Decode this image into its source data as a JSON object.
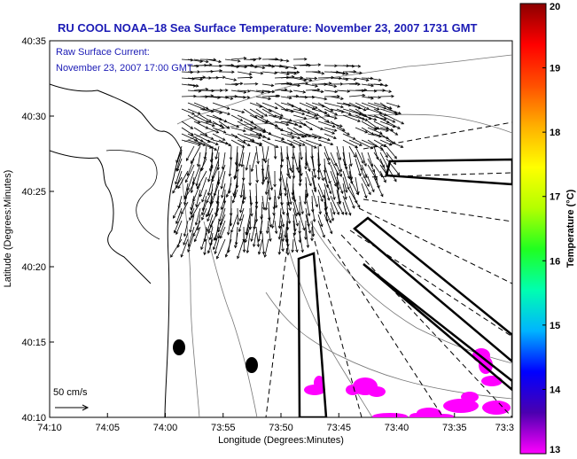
{
  "title": "RU COOL  NOAA–18  Sea Surface Temperature:  November 23, 2007 1731 GMT",
  "annotation": {
    "line1": "Raw Surface Current:",
    "line2": "November 23, 2007 17:00 GMT"
  },
  "scale_label": "50 cm/s",
  "chart_data": {
    "type": "map",
    "xlabel": "Longitude (Degrees:Minutes)",
    "ylabel": "Latitude (Degrees:Minutes)",
    "x_ticks": [
      "74:10",
      "74:05",
      "74:00",
      "73:55",
      "73:50",
      "73:45",
      "73:40",
      "73:35",
      "73:3"
    ],
    "y_ticks": [
      "40:35",
      "40:30",
      "40:25",
      "40:20",
      "40:15",
      "40:10"
    ],
    "xlim_deg_west": [
      74.1667,
      73.5
    ],
    "ylim_deg_north": [
      40.1667,
      40.5833
    ],
    "colorbar": {
      "label": "Temperature (°C)",
      "ticks": [
        "20",
        "19",
        "18",
        "17",
        "16",
        "15",
        "14",
        "13"
      ],
      "range": [
        13,
        20
      ],
      "colors": [
        "#ff00ff",
        "#4b00b0",
        "#0000ff",
        "#00b4ff",
        "#00ffb0",
        "#20ff20",
        "#b4ff00",
        "#ffff00",
        "#ffb000",
        "#ff5000",
        "#ff0000",
        "#8b0000"
      ]
    },
    "sst_patch_color": "#ff00ff",
    "current_field_color": "#000000"
  }
}
